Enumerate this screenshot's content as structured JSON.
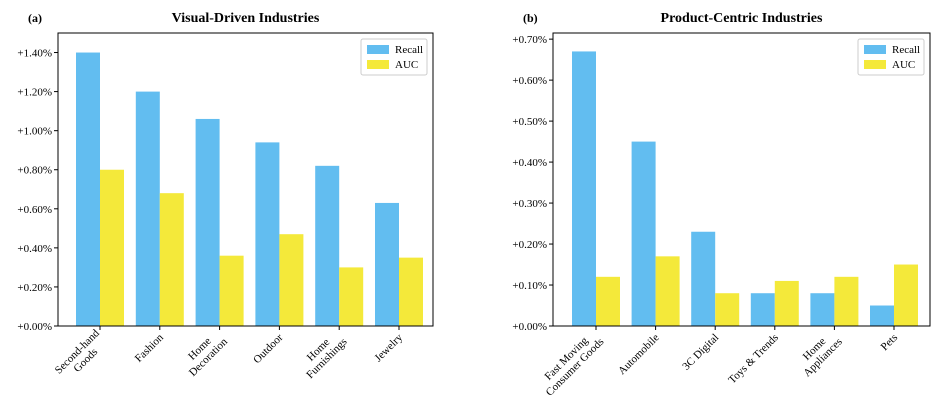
{
  "chart_data": [
    {
      "type": "bar",
      "panel_label": "(a)",
      "title": "Visual-Driven Industries",
      "categories": [
        [
          "Second-hand",
          "Goods"
        ],
        [
          "Fashion"
        ],
        [
          "Home",
          "Decoration"
        ],
        [
          "Outdoor"
        ],
        [
          "Home",
          "Furnishings"
        ],
        [
          "Jewelry"
        ]
      ],
      "series": [
        {
          "name": "Recall",
          "color": "#62bdf0",
          "values": [
            1.4,
            1.2,
            1.06,
            0.94,
            0.82,
            0.63
          ]
        },
        {
          "name": "AUC",
          "color": "#f4e93a",
          "values": [
            0.8,
            0.68,
            0.36,
            0.47,
            0.3,
            0.35
          ]
        }
      ],
      "ylim": [
        0,
        1.5
      ],
      "yticks": [
        {
          "value": 0,
          "label": "+0.00%"
        },
        {
          "value": 0.2,
          "label": "+0.20%"
        },
        {
          "value": 0.4,
          "label": "+0.40%"
        },
        {
          "value": 0.6,
          "label": "+0.60%"
        },
        {
          "value": 0.8,
          "label": "+0.80%"
        },
        {
          "value": 1.0,
          "label": "+1.00%"
        },
        {
          "value": 1.2,
          "label": "+1.20%"
        },
        {
          "value": 1.4,
          "label": "+1.40%"
        }
      ],
      "legend": "upper right"
    },
    {
      "type": "bar",
      "panel_label": "(b)",
      "title": "Product-Centric Industries",
      "categories": [
        [
          "Fast Moving",
          "Consumer Goods"
        ],
        [
          "Automobile"
        ],
        [
          "3C Digital"
        ],
        [
          "Toys & Trends"
        ],
        [
          "Home",
          "Appliances"
        ],
        [
          "Pets"
        ]
      ],
      "series": [
        {
          "name": "Recall",
          "color": "#62bdf0",
          "values": [
            0.67,
            0.45,
            0.23,
            0.08,
            0.08,
            0.05
          ]
        },
        {
          "name": "AUC",
          "color": "#f4e93a",
          "values": [
            0.12,
            0.17,
            0.08,
            0.11,
            0.12,
            0.15
          ]
        }
      ],
      "ylim": [
        0,
        0.715
      ],
      "yticks": [
        {
          "value": 0,
          "label": "+0.00%"
        },
        {
          "value": 0.1,
          "label": "+0.10%"
        },
        {
          "value": 0.2,
          "label": "+0.20%"
        },
        {
          "value": 0.3,
          "label": "+0.30%"
        },
        {
          "value": 0.4,
          "label": "+0.40%"
        },
        {
          "value": 0.5,
          "label": "+0.50%"
        },
        {
          "value": 0.6,
          "label": "+0.60%"
        },
        {
          "value": 0.7,
          "label": "+0.70%"
        }
      ],
      "legend": "upper right"
    }
  ]
}
